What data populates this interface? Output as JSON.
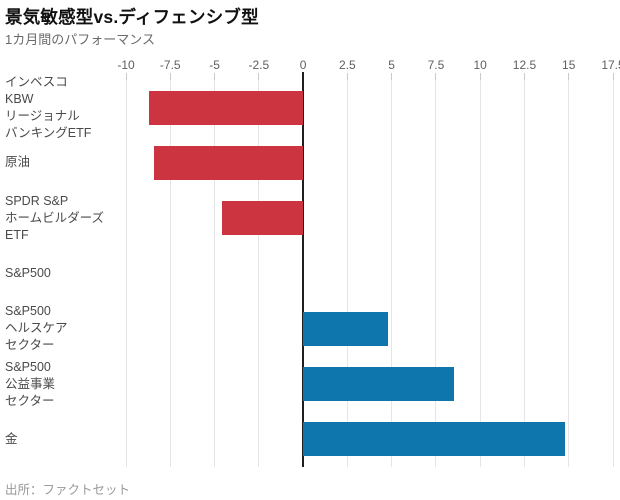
{
  "header": {
    "title": "景気敏感型vs.ディフェンシブ型",
    "subtitle": "1カ月間のパフォーマンス"
  },
  "footer": {
    "source": "出所：ファクトセット"
  },
  "chart_data": {
    "type": "bar",
    "orientation": "horizontal",
    "title": "景気敏感型vs.ディフェンシブ型",
    "subtitle": "1カ月間のパフォーマンス",
    "xlabel": "",
    "ylabel": "",
    "xlim": [
      -10,
      17.5
    ],
    "grid": true,
    "xticks": [
      -10,
      -7.5,
      -5,
      -2.5,
      0,
      2.5,
      5,
      7.5,
      10,
      12.5,
      15,
      17.5
    ],
    "xtick_labels": [
      "-10",
      "-7.5",
      "-5",
      "-2.5",
      "0",
      "2.5",
      "5",
      "7.5",
      "10",
      "12.5",
      "15",
      "17.5"
    ],
    "categories": [
      "インベスコ\nKBW\nリージョナル\nバンキングETF",
      "原油",
      "SPDR S&P\nホームビルダーズ\nETF",
      "S&P500",
      "S&P500\nヘルスケア\nセクター",
      "S&P500\n公益事業\nセクター",
      "金"
    ],
    "values": [
      -8.7,
      -8.4,
      -4.6,
      0,
      4.8,
      8.5,
      14.8
    ],
    "colors": {
      "negative": "#cc3440",
      "positive": "#0e76ad"
    },
    "source": "出所：ファクトセット"
  }
}
